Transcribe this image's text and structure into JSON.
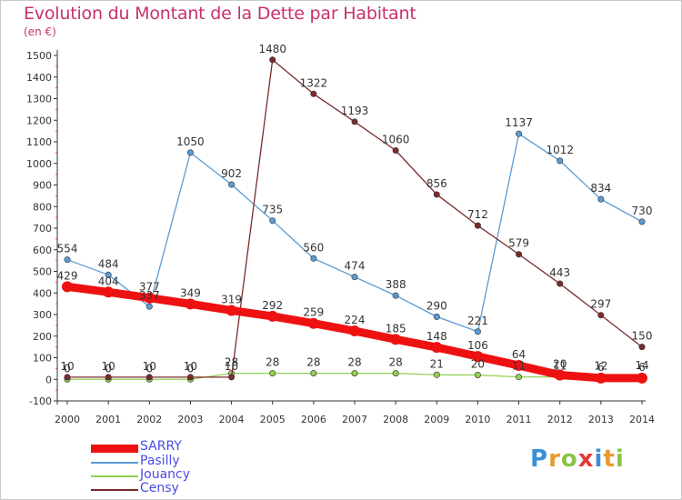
{
  "title": "Evolution du Montant de la Dette par Habitant",
  "subtitle": "(en €)",
  "logo": {
    "letters": [
      "P",
      "r",
      "o",
      "x",
      "i",
      "t",
      "i"
    ],
    "colors": [
      "#3a8fd8",
      "#e89a2c",
      "#8bc34a",
      "#e53935",
      "#3a8fd8",
      "#e89a2c",
      "#8bc34a"
    ]
  },
  "chart_data": {
    "type": "line",
    "x": [
      2000,
      2001,
      2002,
      2003,
      2004,
      2005,
      2006,
      2007,
      2008,
      2009,
      2010,
      2011,
      2012,
      2013,
      2014
    ],
    "ylim": [
      -100,
      1500
    ],
    "yticks": [
      -100,
      0,
      100,
      200,
      300,
      400,
      500,
      600,
      700,
      800,
      900,
      1000,
      1100,
      1200,
      1300,
      1400,
      1500
    ],
    "grid": false,
    "legend_position": "bottom-left",
    "series": [
      {
        "name": "SARRY",
        "color": "#ee1111",
        "values": [
          429,
          404,
          377,
          349,
          319,
          292,
          259,
          224,
          185,
          148,
          106,
          64,
          20,
          6,
          6
        ],
        "labels": [
          "429",
          "404",
          "377",
          "349",
          "319",
          "292",
          "259",
          "224",
          "185",
          "148",
          "106",
          "64",
          "20",
          "6",
          "6"
        ]
      },
      {
        "name": "Pasilly",
        "color": "#5b9bd5",
        "values": [
          554,
          484,
          337,
          1050,
          902,
          735,
          560,
          474,
          388,
          290,
          221,
          1137,
          1012,
          834,
          730
        ],
        "labels": [
          "554",
          "484",
          "337",
          "1050",
          "902",
          "735",
          "560",
          "474",
          "388",
          "290",
          "221",
          "1137",
          "1012",
          "834",
          "730"
        ]
      },
      {
        "name": "Jouancy",
        "color": "#92d050",
        "values": [
          0,
          0,
          0,
          0,
          28,
          28,
          28,
          28,
          28,
          21,
          20,
          11,
          11,
          12,
          14
        ],
        "labels": [
          "0",
          "0",
          "0",
          "0",
          "28",
          "28",
          "28",
          "28",
          "28",
          "21",
          "20",
          "11",
          "11",
          "12",
          "14"
        ]
      },
      {
        "name": "Censy",
        "color": "#7b2b2b",
        "values": [
          10,
          10,
          10,
          10,
          10,
          1480,
          1322,
          1193,
          1060,
          856,
          712,
          579,
          443,
          297,
          150
        ],
        "labels": [
          "10",
          "10",
          "10",
          "10",
          "10",
          "1480",
          "1322",
          "1193",
          "1060",
          "856",
          "712",
          "579",
          "443",
          "297",
          "150"
        ]
      }
    ]
  }
}
